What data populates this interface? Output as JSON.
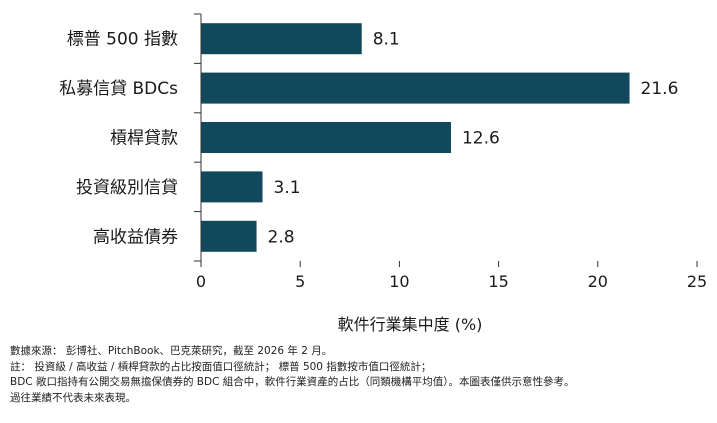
{
  "chart_data": {
    "type": "bar",
    "orientation": "horizontal",
    "categories": [
      "標普 500 指數",
      "私募信貸 BDCs",
      "槓桿貸款",
      "投資級別信貸",
      "高收益債券"
    ],
    "values": [
      8.1,
      21.6,
      12.6,
      3.1,
      2.8
    ],
    "value_labels": [
      "8.1",
      "21.6",
      "12.6",
      "3.1",
      "2.8"
    ],
    "xlabel": "軟件行業集中度 (%)",
    "ylabel": "",
    "xlim": [
      0,
      25
    ],
    "xticks": [
      0,
      5,
      10,
      15,
      20,
      25
    ],
    "grid": false,
    "bar_color": "#12485b"
  },
  "notes": [
    "數據來源： 彭博社、PitchBook、巴克萊研究，截至 2026 年 2 月。",
    "註： 投資級 / 高收益 / 槓桿貸款的占比按面值口徑統計； 標普 500 指數按市值口徑統計；",
    "BDC 敞口指持有公開交易無擔保債券的 BDC 組合中，軟件行業資產的占比（同類機構平均值）。本圖表僅供示意性參考。",
    "過往業績不代表未來表現。"
  ]
}
